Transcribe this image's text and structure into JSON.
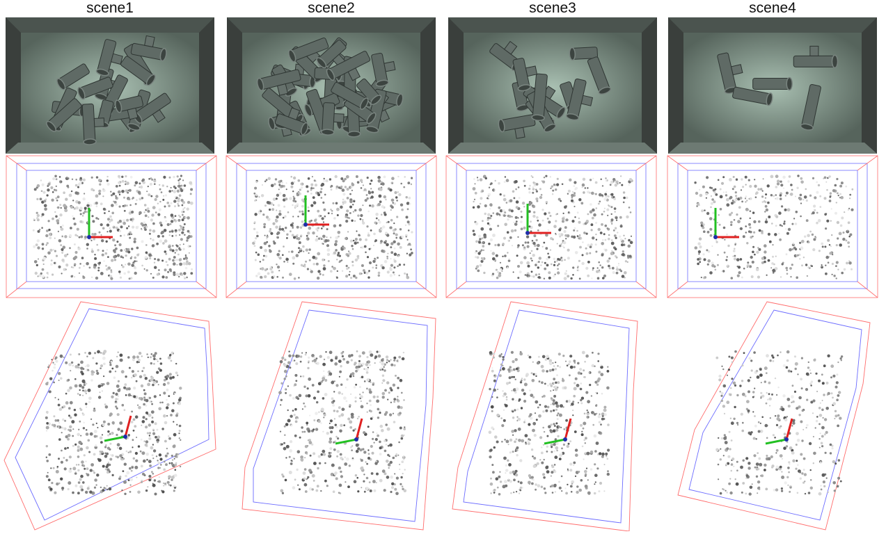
{
  "figure": {
    "columns": [
      {
        "title": "scene1"
      },
      {
        "title": "scene2"
      },
      {
        "title": "scene3"
      },
      {
        "title": "scene4"
      }
    ]
  },
  "colors": {
    "bin_outer": "#3a3f3c",
    "bin_floor": "#8fa79a",
    "pipe": "#5f6a65",
    "bbox_outer": "#ff6b6b",
    "bbox_inner": "#6b6bff",
    "axis_x": "#e02020",
    "axis_y": "#22c022",
    "axis_z": "#1f2fa8"
  }
}
